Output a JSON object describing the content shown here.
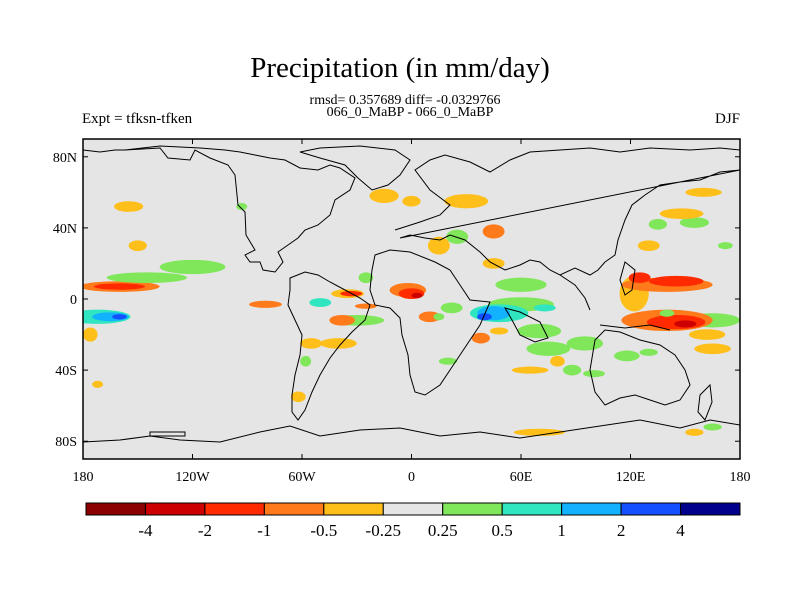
{
  "chart_data": {
    "type": "heatmap",
    "title": "Precipitation (in mm/day)",
    "stats_text": "rmsd= 0.357689 diff= -0.0329766",
    "subtitle": "066_0_MaBP - 066_0_MaBP",
    "left_label": "Expt = tfksn-tfken",
    "right_label": "DJF",
    "xlim": [
      -180,
      180
    ],
    "ylim": [
      -90,
      90
    ],
    "x_ticks": [
      {
        "value": -180,
        "label": "180"
      },
      {
        "value": -120,
        "label": "120W"
      },
      {
        "value": -60,
        "label": "60W"
      },
      {
        "value": 0,
        "label": "0"
      },
      {
        "value": 60,
        "label": "60E"
      },
      {
        "value": 120,
        "label": "120E"
      },
      {
        "value": 180,
        "label": "180"
      }
    ],
    "y_ticks": [
      {
        "value": 80,
        "label": "80N"
      },
      {
        "value": 40,
        "label": "40N"
      },
      {
        "value": 0,
        "label": "0"
      },
      {
        "value": -40,
        "label": "40S"
      },
      {
        "value": -80,
        "label": "80S"
      }
    ],
    "colorbar": {
      "colors": [
        "#8b0000",
        "#cc0000",
        "#ff2a00",
        "#ff7a1a",
        "#ffbf1a",
        "#e5e5e5",
        "#80e65a",
        "#30e6c0",
        "#12b2ff",
        "#1450ff",
        "#00008c"
      ],
      "levels": [
        "-4",
        "-2",
        "-1",
        "-0.5",
        "-0.25",
        "0.25",
        "0.5",
        "1",
        "2",
        "4"
      ]
    },
    "anomalies": [
      {
        "lon": -172,
        "lat": -10,
        "rx": 18,
        "ry": 4,
        "v": 0.6
      },
      {
        "lon": -165,
        "lat": -10,
        "rx": 10,
        "ry": 2.5,
        "v": 1.2
      },
      {
        "lon": -160,
        "lat": -10,
        "rx": 4,
        "ry": 1.5,
        "v": 2.5
      },
      {
        "lon": -160,
        "lat": 7,
        "rx": 22,
        "ry": 3,
        "v": -0.6
      },
      {
        "lon": -160,
        "lat": 7,
        "rx": 14,
        "ry": 1.8,
        "v": -1.2
      },
      {
        "lon": -145,
        "lat": 12,
        "rx": 22,
        "ry": 3,
        "v": 0.4
      },
      {
        "lon": -120,
        "lat": 18,
        "rx": 18,
        "ry": 4,
        "v": 0.4
      },
      {
        "lon": -155,
        "lat": 52,
        "rx": 8,
        "ry": 3,
        "v": -0.4
      },
      {
        "lon": -150,
        "lat": 30,
        "rx": 5,
        "ry": 3,
        "v": -0.35
      },
      {
        "lon": -176,
        "lat": -20,
        "rx": 4,
        "ry": 4,
        "v": -0.4
      },
      {
        "lon": -172,
        "lat": -48,
        "rx": 3,
        "ry": 2,
        "v": -0.35
      },
      {
        "lon": -93,
        "lat": 52,
        "rx": 3,
        "ry": 2,
        "v": 0.35
      },
      {
        "lon": -80,
        "lat": -3,
        "rx": 9,
        "ry": 2,
        "v": -0.5
      },
      {
        "lon": -50,
        "lat": -2,
        "rx": 6,
        "ry": 2.5,
        "v": 0.6
      },
      {
        "lon": -25,
        "lat": -4,
        "rx": 6,
        "ry": 1.5,
        "v": -0.5
      },
      {
        "lon": -35,
        "lat": 3,
        "rx": 9,
        "ry": 2.5,
        "v": -0.4
      },
      {
        "lon": -33,
        "lat": 3,
        "rx": 6,
        "ry": 1.5,
        "v": -1.2
      },
      {
        "lon": -30,
        "lat": -12,
        "rx": 15,
        "ry": 3,
        "v": 0.4
      },
      {
        "lon": -38,
        "lat": -12,
        "rx": 7,
        "ry": 3,
        "v": -0.6
      },
      {
        "lon": -40,
        "lat": -25,
        "rx": 10,
        "ry": 3,
        "v": -0.4
      },
      {
        "lon": -55,
        "lat": -25,
        "rx": 6,
        "ry": 3,
        "v": -0.35
      },
      {
        "lon": -58,
        "lat": -35,
        "rx": 3,
        "ry": 3,
        "v": 0.4
      },
      {
        "lon": -62,
        "lat": -55,
        "rx": 4,
        "ry": 3,
        "v": -0.35
      },
      {
        "lon": -25,
        "lat": 12,
        "rx": 4,
        "ry": 3,
        "v": 0.35
      },
      {
        "lon": -2,
        "lat": 5,
        "rx": 10,
        "ry": 4,
        "v": -0.6
      },
      {
        "lon": 0,
        "lat": 3,
        "rx": 7,
        "ry": 3,
        "v": -1.2
      },
      {
        "lon": 3,
        "lat": 2,
        "rx": 3,
        "ry": 1.5,
        "v": -2.5
      },
      {
        "lon": 10,
        "lat": -10,
        "rx": 6,
        "ry": 3,
        "v": -0.5
      },
      {
        "lon": 15,
        "lat": -10,
        "rx": 3,
        "ry": 2,
        "v": 0.4
      },
      {
        "lon": 22,
        "lat": -5,
        "rx": 6,
        "ry": 3,
        "v": 0.4
      },
      {
        "lon": 20,
        "lat": -35,
        "rx": 5,
        "ry": 2,
        "v": 0.4
      },
      {
        "lon": -15,
        "lat": 58,
        "rx": 8,
        "ry": 4,
        "v": -0.4
      },
      {
        "lon": 0,
        "lat": 55,
        "rx": 5,
        "ry": 3,
        "v": -0.35
      },
      {
        "lon": 30,
        "lat": 55,
        "rx": 12,
        "ry": 4,
        "v": -0.4
      },
      {
        "lon": 15,
        "lat": 30,
        "rx": 6,
        "ry": 5,
        "v": -0.4
      },
      {
        "lon": 25,
        "lat": 35,
        "rx": 6,
        "ry": 4,
        "v": 0.4
      },
      {
        "lon": 45,
        "lat": 38,
        "rx": 6,
        "ry": 4,
        "v": -0.5
      },
      {
        "lon": 45,
        "lat": 20,
        "rx": 6,
        "ry": 3,
        "v": -0.35
      },
      {
        "lon": 60,
        "lat": 8,
        "rx": 14,
        "ry": 4,
        "v": 0.4
      },
      {
        "lon": 60,
        "lat": -3,
        "rx": 18,
        "ry": 4,
        "v": 0.4
      },
      {
        "lon": 48,
        "lat": -8,
        "rx": 16,
        "ry": 5,
        "v": 0.6
      },
      {
        "lon": 45,
        "lat": -8,
        "rx": 9,
        "ry": 4,
        "v": 1.2
      },
      {
        "lon": 40,
        "lat": -10,
        "rx": 4,
        "ry": 2,
        "v": 2.5
      },
      {
        "lon": 73,
        "lat": -5,
        "rx": 6,
        "ry": 2,
        "v": 0.6
      },
      {
        "lon": 38,
        "lat": -22,
        "rx": 5,
        "ry": 3,
        "v": -0.5
      },
      {
        "lon": 48,
        "lat": -18,
        "rx": 5,
        "ry": 2,
        "v": -0.4
      },
      {
        "lon": 70,
        "lat": -18,
        "rx": 12,
        "ry": 4,
        "v": 0.4
      },
      {
        "lon": 75,
        "lat": -28,
        "rx": 12,
        "ry": 4,
        "v": 0.4
      },
      {
        "lon": 80,
        "lat": -35,
        "rx": 4,
        "ry": 3,
        "v": -0.35
      },
      {
        "lon": 65,
        "lat": -40,
        "rx": 10,
        "ry": 2,
        "v": -0.35
      },
      {
        "lon": 95,
        "lat": -25,
        "rx": 10,
        "ry": 4,
        "v": 0.4
      },
      {
        "lon": 100,
        "lat": -42,
        "rx": 6,
        "ry": 2,
        "v": 0.35
      },
      {
        "lon": 88,
        "lat": -40,
        "rx": 5,
        "ry": 3,
        "v": 0.35
      },
      {
        "lon": 122,
        "lat": 3,
        "rx": 8,
        "ry": 10,
        "v": -0.4
      },
      {
        "lon": 140,
        "lat": 8,
        "rx": 25,
        "ry": 4,
        "v": -0.6
      },
      {
        "lon": 145,
        "lat": 10,
        "rx": 15,
        "ry": 3,
        "v": -1.2
      },
      {
        "lon": 125,
        "lat": 12,
        "rx": 6,
        "ry": 3,
        "v": -1.2
      },
      {
        "lon": 165,
        "lat": -12,
        "rx": 15,
        "ry": 4,
        "v": 0.4
      },
      {
        "lon": 140,
        "lat": -12,
        "rx": 25,
        "ry": 6,
        "v": -0.6
      },
      {
        "lon": 145,
        "lat": -13,
        "rx": 16,
        "ry": 4,
        "v": -1.2
      },
      {
        "lon": 150,
        "lat": -14,
        "rx": 6,
        "ry": 2,
        "v": -2.5
      },
      {
        "lon": 162,
        "lat": -20,
        "rx": 10,
        "ry": 3,
        "v": -0.4
      },
      {
        "lon": 165,
        "lat": -28,
        "rx": 10,
        "ry": 3,
        "v": -0.4
      },
      {
        "lon": 140,
        "lat": -8,
        "rx": 4,
        "ry": 2,
        "v": 0.4
      },
      {
        "lon": 118,
        "lat": -32,
        "rx": 7,
        "ry": 3,
        "v": 0.4
      },
      {
        "lon": 130,
        "lat": -30,
        "rx": 5,
        "ry": 2,
        "v": 0.35
      },
      {
        "lon": 130,
        "lat": 30,
        "rx": 6,
        "ry": 3,
        "v": -0.35
      },
      {
        "lon": 135,
        "lat": 42,
        "rx": 5,
        "ry": 3,
        "v": 0.4
      },
      {
        "lon": 155,
        "lat": 43,
        "rx": 8,
        "ry": 3,
        "v": 0.4
      },
      {
        "lon": 148,
        "lat": 48,
        "rx": 12,
        "ry": 3,
        "v": -0.4
      },
      {
        "lon": 160,
        "lat": 60,
        "rx": 10,
        "ry": 2.5,
        "v": -0.4
      },
      {
        "lon": 172,
        "lat": 30,
        "rx": 4,
        "ry": 2,
        "v": 0.35
      },
      {
        "lon": 70,
        "lat": -75,
        "rx": 14,
        "ry": 2,
        "v": -0.4
      },
      {
        "lon": 155,
        "lat": -75,
        "rx": 5,
        "ry": 2,
        "v": -0.35
      },
      {
        "lon": 165,
        "lat": -72,
        "rx": 5,
        "ry": 2,
        "v": 0.4
      }
    ]
  }
}
